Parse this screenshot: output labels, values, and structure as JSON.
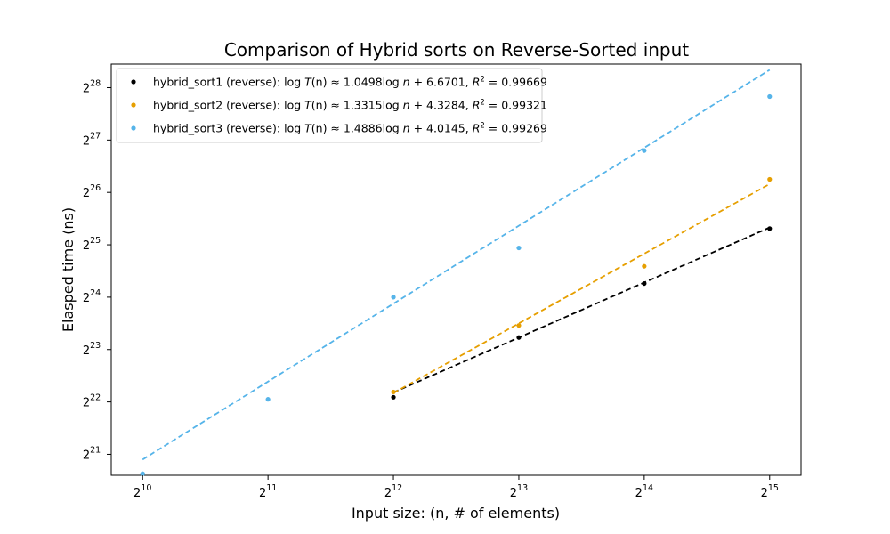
{
  "chart_data": {
    "type": "scatter",
    "title": "Comparison of Hybrid sorts on Reverse-Sorted input",
    "xlabel": "Input size: (n, # of elements)",
    "ylabel": "Elasped time (ns)",
    "xscale": "log2",
    "yscale": "log2",
    "xlim_log2": [
      9.75,
      15.25
    ],
    "ylim_log2": [
      20.6,
      28.45
    ],
    "x_ticks": [
      {
        "base": "2",
        "exp": "10"
      },
      {
        "base": "2",
        "exp": "11"
      },
      {
        "base": "2",
        "exp": "12"
      },
      {
        "base": "2",
        "exp": "13"
      },
      {
        "base": "2",
        "exp": "14"
      },
      {
        "base": "2",
        "exp": "15"
      }
    ],
    "y_ticks": [
      {
        "base": "2",
        "exp": "21"
      },
      {
        "base": "2",
        "exp": "22"
      },
      {
        "base": "2",
        "exp": "23"
      },
      {
        "base": "2",
        "exp": "24"
      },
      {
        "base": "2",
        "exp": "25"
      },
      {
        "base": "2",
        "exp": "26"
      },
      {
        "base": "2",
        "exp": "27"
      },
      {
        "base": "2",
        "exp": "28"
      }
    ],
    "grid": false,
    "legend_position": "top-left",
    "series": [
      {
        "name": "hybrid_sort1 (reverse): log T(n) ≈ 1.0498log n + 6.6701, R² = 0.99669",
        "legend": {
          "prefix": "hybrid_sort1 (reverse): log ",
          "T": "T",
          "mid": "(n) ≈ 1.0498log ",
          "n": "n",
          "fit": " + 6.6701, ",
          "R": "R",
          "sup": "2",
          "r2": " = 0.99669"
        },
        "color": "#000000",
        "x_log2": [
          12,
          13,
          14,
          15
        ],
        "y_log2": [
          22.09,
          23.23,
          24.26,
          25.31
        ],
        "fit_x_log2": [
          12,
          15
        ],
        "fit_y_log2": [
          22.18,
          25.33
        ]
      },
      {
        "name": "hybrid_sort2 (reverse): log T(n) ≈ 1.3315log n + 4.3284, R² = 0.99321",
        "legend": {
          "prefix": "hybrid_sort2 (reverse): log ",
          "T": "T",
          "mid": "(n) ≈ 1.3315log ",
          "n": "n",
          "fit": " + 4.3284, ",
          "R": "R",
          "sup": "2",
          "r2": " = 0.99321"
        },
        "color": "#e69f00",
        "x_log2": [
          12,
          13,
          14,
          15
        ],
        "y_log2": [
          22.19,
          23.46,
          24.59,
          26.25
        ],
        "fit_x_log2": [
          12,
          15
        ],
        "fit_y_log2": [
          22.17,
          26.16
        ]
      },
      {
        "name": "hybrid_sort3 (reverse): log T(n) ≈ 1.4886log n + 4.0145, R² = 0.99269",
        "legend": {
          "prefix": "hybrid_sort3 (reverse): log ",
          "T": "T",
          "mid": "(n) ≈ 1.4886log ",
          "n": "n",
          "fit": " + 4.0145, ",
          "R": "R",
          "sup": "2",
          "r2": " = 0.99269"
        },
        "color": "#56b4e9",
        "x_log2": [
          10,
          11,
          12,
          13,
          14,
          15
        ],
        "y_log2": [
          20.63,
          22.05,
          24.0,
          24.94,
          26.8,
          27.83
        ],
        "fit_x_log2": [
          10,
          15
        ],
        "fit_y_log2": [
          20.9,
          28.34
        ]
      }
    ]
  }
}
